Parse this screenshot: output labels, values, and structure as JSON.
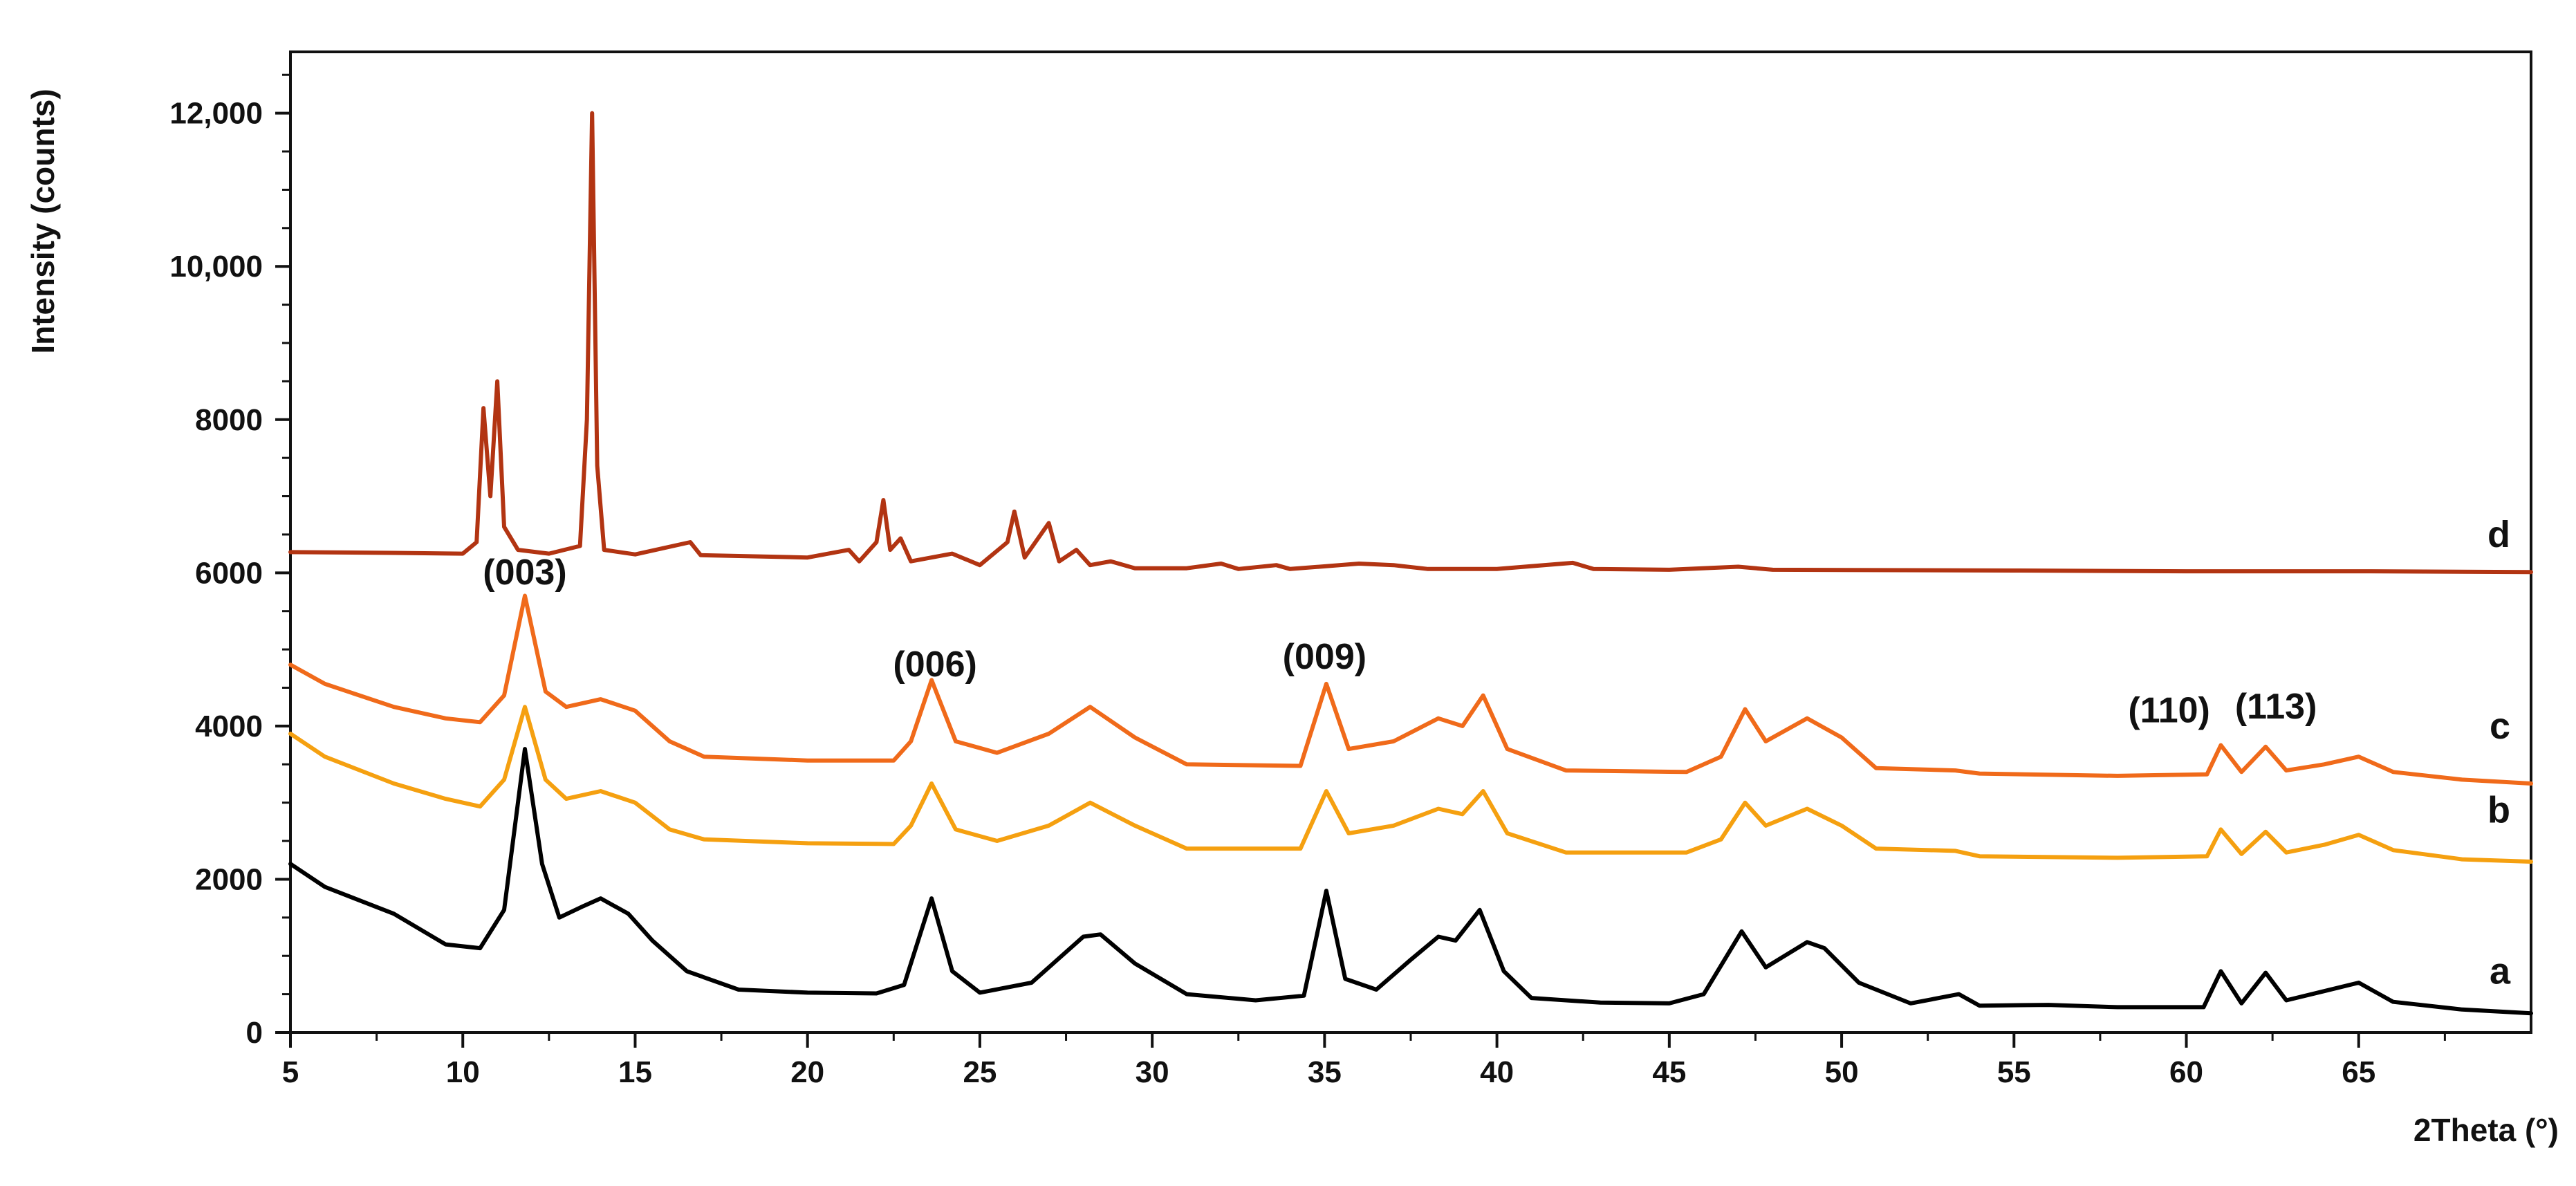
{
  "chart_data": {
    "type": "line",
    "title": "",
    "xlabel": "2Theta (°)",
    "ylabel": "Intensity (counts)",
    "xlim": [
      5,
      70
    ],
    "ylim": [
      0,
      12800
    ],
    "x_ticks": [
      5,
      10,
      15,
      20,
      25,
      30,
      35,
      40,
      45,
      50,
      55,
      60,
      65
    ],
    "x_tick_labels": [
      "5",
      "10",
      "15",
      "20",
      "25",
      "30",
      "35",
      "40",
      "45",
      "50",
      "55",
      "60",
      "65"
    ],
    "y_ticks": [
      0,
      2000,
      4000,
      6000,
      8000,
      10000,
      12000
    ],
    "y_tick_labels": [
      "0",
      "2000",
      "4000",
      "6000",
      "8000",
      "10,000",
      "12,000"
    ],
    "grid": false,
    "legend": "series labels at right end of curves",
    "series": [
      {
        "name": "a",
        "color": "#000000",
        "points": [
          [
            5,
            2200
          ],
          [
            6,
            1900
          ],
          [
            8,
            1550
          ],
          [
            9.5,
            1150
          ],
          [
            10.5,
            1100
          ],
          [
            11.2,
            1600
          ],
          [
            11.8,
            3700
          ],
          [
            12.3,
            2200
          ],
          [
            12.8,
            1500
          ],
          [
            13.5,
            1650
          ],
          [
            14,
            1750
          ],
          [
            14.8,
            1550
          ],
          [
            15.5,
            1200
          ],
          [
            16.5,
            800
          ],
          [
            18,
            560
          ],
          [
            20,
            520
          ],
          [
            22,
            510
          ],
          [
            22.8,
            620
          ],
          [
            23.6,
            1750
          ],
          [
            24.2,
            800
          ],
          [
            25,
            520
          ],
          [
            26.5,
            650
          ],
          [
            28,
            1250
          ],
          [
            28.5,
            1280
          ],
          [
            29.5,
            900
          ],
          [
            31,
            500
          ],
          [
            33,
            420
          ],
          [
            34.4,
            480
          ],
          [
            35.05,
            1850
          ],
          [
            35.6,
            700
          ],
          [
            36.5,
            560
          ],
          [
            37.5,
            950
          ],
          [
            38.3,
            1250
          ],
          [
            38.8,
            1200
          ],
          [
            39.5,
            1600
          ],
          [
            40.2,
            800
          ],
          [
            41,
            450
          ],
          [
            43,
            390
          ],
          [
            45,
            380
          ],
          [
            46,
            500
          ],
          [
            47.1,
            1320
          ],
          [
            47.8,
            850
          ],
          [
            49,
            1180
          ],
          [
            49.5,
            1100
          ],
          [
            50.5,
            650
          ],
          [
            52,
            380
          ],
          [
            53.4,
            500
          ],
          [
            54,
            350
          ],
          [
            56,
            360
          ],
          [
            58,
            330
          ],
          [
            60.5,
            330
          ],
          [
            61,
            800
          ],
          [
            61.6,
            380
          ],
          [
            62.3,
            780
          ],
          [
            62.9,
            420
          ],
          [
            64,
            540
          ],
          [
            65,
            650
          ],
          [
            66,
            400
          ],
          [
            68,
            300
          ],
          [
            70,
            250
          ]
        ]
      },
      {
        "name": "b",
        "color": "#f5a010",
        "points": [
          [
            5,
            3900
          ],
          [
            6,
            3600
          ],
          [
            8,
            3250
          ],
          [
            9.5,
            3050
          ],
          [
            10.5,
            2950
          ],
          [
            11.2,
            3300
          ],
          [
            11.8,
            4250
          ],
          [
            12.4,
            3300
          ],
          [
            13,
            3050
          ],
          [
            14,
            3150
          ],
          [
            15,
            3000
          ],
          [
            16,
            2650
          ],
          [
            17,
            2520
          ],
          [
            20,
            2470
          ],
          [
            22.5,
            2460
          ],
          [
            23,
            2700
          ],
          [
            23.6,
            3250
          ],
          [
            24.3,
            2650
          ],
          [
            25.5,
            2500
          ],
          [
            27,
            2700
          ],
          [
            28.2,
            3000
          ],
          [
            29.5,
            2700
          ],
          [
            31,
            2400
          ],
          [
            34.3,
            2400
          ],
          [
            35.05,
            3150
          ],
          [
            35.7,
            2600
          ],
          [
            37,
            2700
          ],
          [
            38.3,
            2920
          ],
          [
            39,
            2850
          ],
          [
            39.6,
            3150
          ],
          [
            40.3,
            2600
          ],
          [
            42,
            2350
          ],
          [
            45.5,
            2350
          ],
          [
            46.5,
            2520
          ],
          [
            47.2,
            3000
          ],
          [
            47.8,
            2700
          ],
          [
            49,
            2920
          ],
          [
            50,
            2700
          ],
          [
            51,
            2400
          ],
          [
            53.3,
            2370
          ],
          [
            54,
            2300
          ],
          [
            58,
            2280
          ],
          [
            60.6,
            2300
          ],
          [
            61,
            2650
          ],
          [
            61.6,
            2330
          ],
          [
            62.3,
            2620
          ],
          [
            62.9,
            2350
          ],
          [
            64,
            2450
          ],
          [
            65,
            2580
          ],
          [
            66,
            2380
          ],
          [
            68,
            2260
          ],
          [
            70,
            2230
          ]
        ]
      },
      {
        "name": "c",
        "color": "#f06a1a",
        "points": [
          [
            5,
            4800
          ],
          [
            6,
            4550
          ],
          [
            8,
            4250
          ],
          [
            9.5,
            4100
          ],
          [
            10.5,
            4050
          ],
          [
            11.2,
            4400
          ],
          [
            11.8,
            5700
          ],
          [
            12.4,
            4450
          ],
          [
            13,
            4250
          ],
          [
            14,
            4350
          ],
          [
            15,
            4200
          ],
          [
            16,
            3800
          ],
          [
            17,
            3600
          ],
          [
            20,
            3550
          ],
          [
            22.5,
            3550
          ],
          [
            23,
            3800
          ],
          [
            23.6,
            4600
          ],
          [
            24.3,
            3800
          ],
          [
            25.5,
            3650
          ],
          [
            27,
            3900
          ],
          [
            28.2,
            4250
          ],
          [
            29.5,
            3850
          ],
          [
            31,
            3500
          ],
          [
            34.3,
            3480
          ],
          [
            35.05,
            4550
          ],
          [
            35.7,
            3700
          ],
          [
            37,
            3800
          ],
          [
            38.3,
            4100
          ],
          [
            39,
            4000
          ],
          [
            39.6,
            4400
          ],
          [
            40.3,
            3700
          ],
          [
            42,
            3420
          ],
          [
            45.5,
            3400
          ],
          [
            46.5,
            3600
          ],
          [
            47.2,
            4220
          ],
          [
            47.8,
            3800
          ],
          [
            49,
            4100
          ],
          [
            50,
            3850
          ],
          [
            51,
            3450
          ],
          [
            53.3,
            3420
          ],
          [
            54,
            3380
          ],
          [
            58,
            3350
          ],
          [
            60.6,
            3370
          ],
          [
            61,
            3750
          ],
          [
            61.6,
            3400
          ],
          [
            62.3,
            3730
          ],
          [
            62.9,
            3420
          ],
          [
            64,
            3500
          ],
          [
            65,
            3600
          ],
          [
            66,
            3400
          ],
          [
            68,
            3300
          ],
          [
            70,
            3250
          ]
        ]
      },
      {
        "name": "d",
        "color": "#b23412",
        "points": [
          [
            5,
            6270
          ],
          [
            8,
            6260
          ],
          [
            10,
            6250
          ],
          [
            10.4,
            6400
          ],
          [
            10.6,
            8150
          ],
          [
            10.8,
            7000
          ],
          [
            11,
            8500
          ],
          [
            11.2,
            6600
          ],
          [
            11.6,
            6300
          ],
          [
            12.5,
            6250
          ],
          [
            13.4,
            6350
          ],
          [
            13.6,
            8000
          ],
          [
            13.75,
            12000
          ],
          [
            13.9,
            7400
          ],
          [
            14.1,
            6300
          ],
          [
            15,
            6240
          ],
          [
            16.6,
            6400
          ],
          [
            16.9,
            6230
          ],
          [
            20,
            6200
          ],
          [
            21.2,
            6300
          ],
          [
            21.5,
            6150
          ],
          [
            22,
            6400
          ],
          [
            22.2,
            6950
          ],
          [
            22.4,
            6300
          ],
          [
            22.7,
            6450
          ],
          [
            23,
            6150
          ],
          [
            24.2,
            6250
          ],
          [
            25,
            6100
          ],
          [
            25.8,
            6400
          ],
          [
            26,
            6800
          ],
          [
            26.3,
            6200
          ],
          [
            27,
            6650
          ],
          [
            27.3,
            6150
          ],
          [
            27.8,
            6300
          ],
          [
            28.2,
            6100
          ],
          [
            28.8,
            6150
          ],
          [
            29.5,
            6060
          ],
          [
            31,
            6060
          ],
          [
            32,
            6120
          ],
          [
            32.5,
            6050
          ],
          [
            33.6,
            6100
          ],
          [
            34,
            6050
          ],
          [
            36,
            6120
          ],
          [
            37,
            6100
          ],
          [
            38,
            6050
          ],
          [
            40,
            6050
          ],
          [
            42.2,
            6130
          ],
          [
            42.8,
            6050
          ],
          [
            45,
            6040
          ],
          [
            47,
            6080
          ],
          [
            48,
            6040
          ],
          [
            55,
            6030
          ],
          [
            60,
            6020
          ],
          [
            65,
            6020
          ],
          [
            70,
            6010
          ]
        ]
      }
    ],
    "series_labels": [
      {
        "text": "a",
        "y": 800
      },
      {
        "text": "b",
        "y": 2900
      },
      {
        "text": "c",
        "y": 4000
      },
      {
        "text": "d",
        "y": 6500
      }
    ],
    "annotations": [
      {
        "text": "(003)",
        "x": 11.8,
        "y": 5850
      },
      {
        "text": "(006)",
        "x": 23.7,
        "y": 4650
      },
      {
        "text": "(009)",
        "x": 35,
        "y": 4750
      },
      {
        "text": "(110)",
        "x": 59.5,
        "y": 4050
      },
      {
        "text": "(113)",
        "x": 62.6,
        "y": 4100
      }
    ]
  }
}
